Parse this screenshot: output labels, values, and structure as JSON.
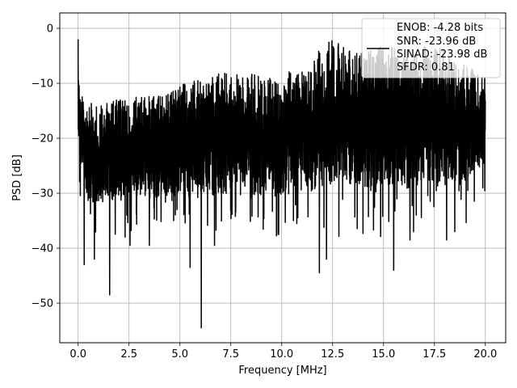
{
  "chart_data": {
    "type": "line",
    "xlabel": "Frequency [MHz]",
    "ylabel": "PSD [dB]",
    "xlim": [
      -0.9,
      21.0
    ],
    "ylim": [
      -57.2,
      2.8
    ],
    "x_ticks": [
      0,
      2.5,
      5,
      7.5,
      10,
      12.5,
      15,
      17.5,
      20
    ],
    "x_tick_labels": [
      "0.0",
      "2.5",
      "5.0",
      "7.5",
      "10.0",
      "12.5",
      "15.0",
      "17.5",
      "20.0"
    ],
    "y_ticks": [
      0,
      -10,
      -20,
      -30,
      -40,
      -50
    ],
    "y_tick_labels": [
      "0",
      "−10",
      "−20",
      "−30",
      "−40",
      "−50"
    ],
    "grid": true,
    "legend_position": "top-right",
    "legend_entries": [
      "ENOB: -4.28 bits",
      "SNR: -23.96 dB",
      "SINAD: -23.98 dB",
      "SFDR: 0.81"
    ],
    "series_color": "#000000",
    "envelope": {
      "x": [
        0,
        0.05,
        0.15,
        0.3,
        0.5,
        0.75,
        1.0,
        1.5,
        2.0,
        2.5,
        3.0,
        3.5,
        4.0,
        4.5,
        5.0,
        5.5,
        6.0,
        6.5,
        7.0,
        7.5,
        8.0,
        8.5,
        9.0,
        9.5,
        10.0,
        10.5,
        11.0,
        11.5,
        12.0,
        12.5,
        13.0,
        13.5,
        14.0,
        14.5,
        15.0,
        15.5,
        16.0,
        16.5,
        17.0,
        17.5,
        18.0,
        18.5,
        19.0,
        19.5,
        20.0
      ],
      "upper": [
        -2,
        -9,
        -11,
        -13,
        -13,
        -14,
        -14,
        -13,
        -13,
        -13,
        -12,
        -12,
        -12,
        -11,
        -10,
        -10,
        -9,
        -9,
        -8,
        -8,
        -8,
        -8,
        -9,
        -9,
        -8,
        -7,
        -7,
        -6,
        -3,
        -2,
        -3,
        -4,
        -4,
        -3,
        -3,
        -3,
        -4,
        -4,
        -3,
        -3,
        -4,
        -5,
        -6,
        -8,
        -9
      ],
      "lower": [
        -23,
        -28,
        -35,
        -34,
        -38,
        -41,
        -39,
        -48,
        -37,
        -42,
        -37,
        -40,
        -37,
        -40,
        -37,
        -38,
        -54,
        -41,
        -40,
        -37,
        -36,
        -40,
        -38,
        -36,
        -40,
        -37,
        -35,
        -40,
        -44,
        -41,
        -36,
        -38,
        -38,
        -41,
        -44,
        -40,
        -38,
        -40,
        -35,
        -39,
        -38,
        -36,
        -36,
        -32,
        -30
      ],
      "dips": [
        {
          "x": 0.3,
          "y": -43
        },
        {
          "x": 0.8,
          "y": -42
        },
        {
          "x": 1.55,
          "y": -48.5
        },
        {
          "x": 2.55,
          "y": -39.5
        },
        {
          "x": 3.5,
          "y": -39.5
        },
        {
          "x": 5.5,
          "y": -43.5
        },
        {
          "x": 6.05,
          "y": -54.5
        },
        {
          "x": 6.7,
          "y": -39.5
        },
        {
          "x": 9.85,
          "y": -37.5
        },
        {
          "x": 11.85,
          "y": -44.5
        },
        {
          "x": 12.2,
          "y": -42
        },
        {
          "x": 15.5,
          "y": -44
        },
        {
          "x": 16.3,
          "y": -38.5
        },
        {
          "x": 18.1,
          "y": -38.5
        },
        {
          "x": 18.5,
          "y": -37
        }
      ]
    }
  }
}
